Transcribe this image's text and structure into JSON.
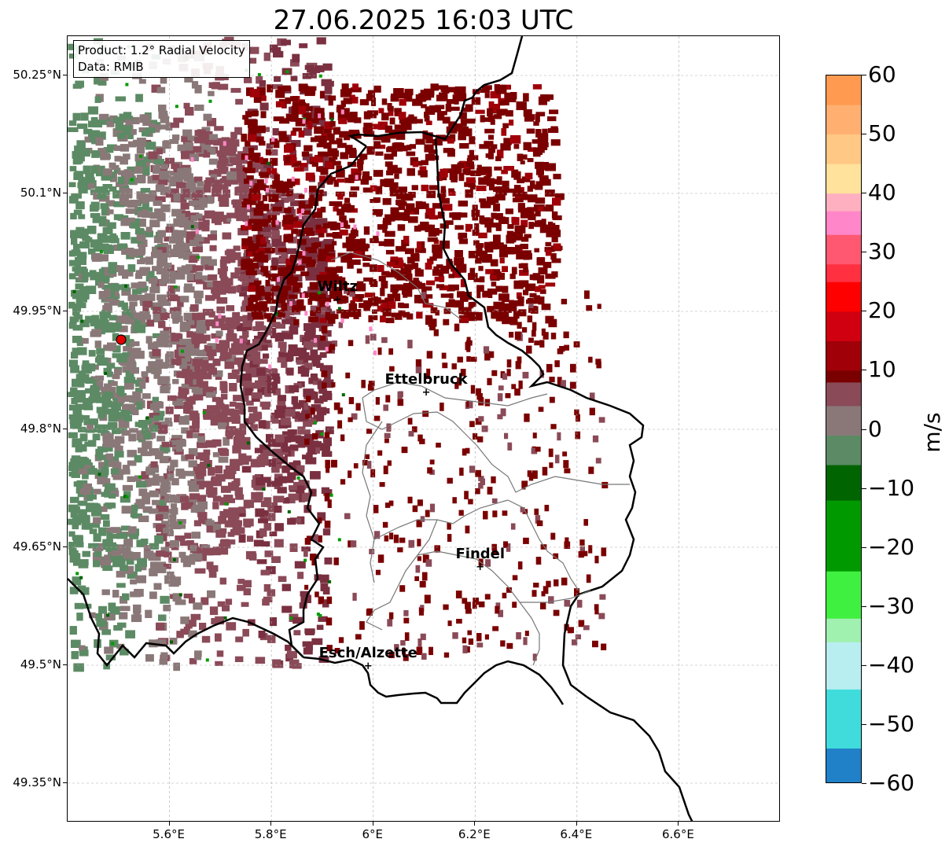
{
  "title": "27.06.2025 16:03 UTC",
  "info_box": {
    "line1": "Product: 1.2° Radial Velocity",
    "line2": "Data: RMIB"
  },
  "map": {
    "lon_range": [
      5.4,
      6.8
    ],
    "lat_range": [
      49.3,
      50.3
    ],
    "x_ticks": [
      "5.6°E",
      "5.8°E",
      "6°E",
      "6.2°E",
      "6.4°E",
      "6.6°E"
    ],
    "x_tick_values": [
      5.6,
      5.8,
      6.0,
      6.2,
      6.4,
      6.6
    ],
    "y_ticks": [
      "50.25°N",
      "50.1°N",
      "49.95°N",
      "49.8°N",
      "49.65°N",
      "49.5°N",
      "49.35°N"
    ],
    "y_tick_values": [
      50.25,
      50.1,
      49.95,
      49.8,
      49.65,
      49.5,
      49.35
    ],
    "grid": "dashed light gray",
    "radar_site": {
      "lon": 5.505,
      "lat": 49.914,
      "color": "#e00000"
    },
    "cities": [
      {
        "name": "Wiltz",
        "label": "Wiltz",
        "lon": 5.93,
        "lat": 49.966
      },
      {
        "name": "Ettelbruck",
        "label": "Ettelbruck",
        "lon": 6.104,
        "lat": 49.848
      },
      {
        "name": "Findel",
        "label": "Findel",
        "lon": 6.21,
        "lat": 49.626
      },
      {
        "name": "Esch/Alzette",
        "label": "Esch/Alzette",
        "lon": 5.99,
        "lat": 49.5
      }
    ]
  },
  "colorbar": {
    "label": "m/s",
    "min": -60,
    "max": 60,
    "ticks": [
      "60",
      "50",
      "40",
      "30",
      "20",
      "10",
      "0",
      "−10",
      "−20",
      "−30",
      "−40",
      "−50",
      "−60"
    ],
    "tick_values": [
      60,
      50,
      40,
      30,
      20,
      10,
      0,
      -10,
      -20,
      -30,
      -40,
      -50,
      -60
    ],
    "colors": {
      "p60": "#ff9a50",
      "p50": "#ffc884",
      "p45": "#ffe29c",
      "p40": "#ffb0c0",
      "p35": "#ff86c8",
      "p30": "#ff5870",
      "p25": "#ff0000",
      "p20": "#d00010",
      "p15": "#a00008",
      "p10": "#7a0000",
      "p5": "#8a4a58",
      "zero": "#8a7878",
      "m5": "#5c8a64",
      "m10": "#006400",
      "m20": "#009a00",
      "m30": "#40f040",
      "m35": "#a0f0b0",
      "m40": "#b8eef0",
      "m50": "#40dcdc",
      "m60": "#2080c8"
    }
  }
}
